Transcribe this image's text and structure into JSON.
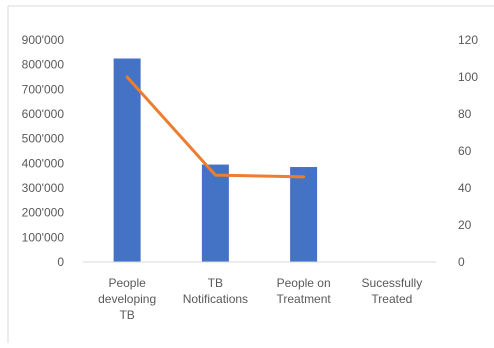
{
  "chart_data": {
    "type": "bar",
    "categories": [
      [
        "People",
        "developing",
        "TB"
      ],
      [
        "TB",
        "Notifications"
      ],
      [
        "People on",
        "Treatment"
      ],
      [
        "Sucessfully",
        "Treated"
      ]
    ],
    "series": [
      {
        "axis": "left",
        "type": "bar",
        "values": [
          825000,
          395000,
          385000,
          null
        ]
      },
      {
        "axis": "right",
        "type": "line",
        "values": [
          100,
          47,
          46,
          null
        ]
      }
    ],
    "y_left": {
      "ylim": [
        0,
        900000
      ],
      "ticks": [
        "0",
        "100'000",
        "200'000",
        "300'000",
        "400'000",
        "500'000",
        "600'000",
        "700'000",
        "800'000",
        "900'000"
      ]
    },
    "y_right": {
      "ylim": [
        0,
        120
      ],
      "ticks": [
        "0",
        "20",
        "40",
        "60",
        "80",
        "100",
        "120"
      ]
    },
    "grid": false,
    "legend": "none",
    "colors": {
      "bar": "#4472C4",
      "line": "#ED7D31",
      "axis": "#D9D9D9",
      "text": "#595959"
    }
  }
}
